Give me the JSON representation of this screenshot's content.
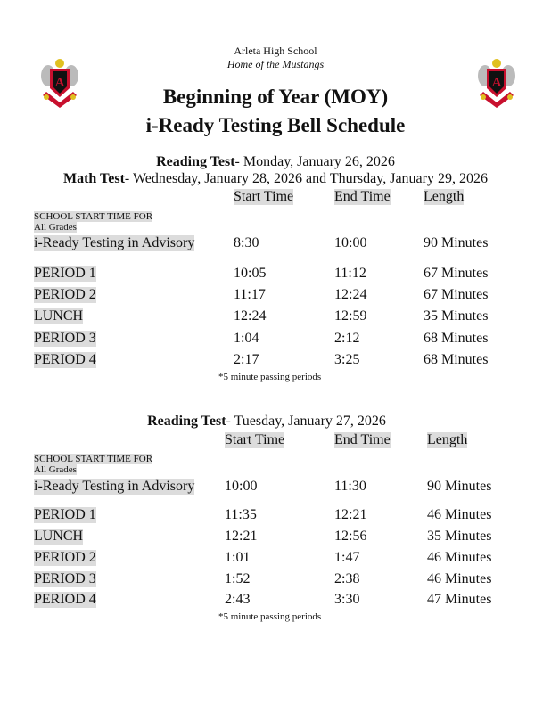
{
  "header": {
    "school": "Arleta High School",
    "motto": "Home of the Mustangs",
    "title_line1": "Beginning of Year (MOY)",
    "title_line2": "i-Ready Testing Bell Schedule",
    "crest_letter": "A"
  },
  "colors": {
    "highlight": "#dcdcdc",
    "crest_red": "#c8102e",
    "crest_black": "#111111",
    "crest_gold": "#e0c020"
  },
  "section1": {
    "line1_bold": "Reading Test",
    "line1_rest": "- Monday, January 26, 2026",
    "line2_bold": "Math Test",
    "line2_rest": "- Wednesday,  January 28, 2026 and Thursday,  January 29, 2026",
    "columns": [
      "Start Time",
      "End Time",
      "Length"
    ],
    "school_start_label": "SCHOOL START TIME FOR",
    "all_grades_label": "All Grades",
    "rows": [
      {
        "label": "i-Ready Testing in Advisory",
        "start": "8:30",
        "end": "10:00",
        "length": "90 Minutes"
      },
      {
        "label": "PERIOD 1",
        "start": "10:05",
        "end": "11:12",
        "length": "67 Minutes"
      },
      {
        "label": "PERIOD 2",
        "start": "11:17",
        "end": "12:24",
        "length": "67 Minutes"
      },
      {
        "label": "LUNCH",
        "start": "12:24",
        "end": "12:59",
        "length": "35 Minutes"
      },
      {
        "label": "PERIOD 3",
        "start": "1:04",
        "end": "2:12",
        "length": "68 Minutes"
      },
      {
        "label": "PERIOD 4",
        "start": "2:17",
        "end": "3:25",
        "length": "68 Minutes"
      }
    ],
    "note": "*5 minute passing periods"
  },
  "section2": {
    "line1_bold": "Reading Test",
    "line1_rest": "- Tuesday,  January 27, 2026",
    "columns": [
      "Start Time",
      "End Time",
      "Length"
    ],
    "school_start_label": "SCHOOL START TIME FOR",
    "all_grades_label": "All Grades",
    "rows": [
      {
        "label": "i-Ready Testing in Advisory",
        "start": "10:00",
        "end": "11:30",
        "length": "90 Minutes"
      },
      {
        "label": "PERIOD 1",
        "start": "11:35",
        "end": "12:21",
        "length": "46 Minutes"
      },
      {
        "label": "LUNCH",
        "start": "12:21",
        "end": "12:56",
        "length": "35 Minutes"
      },
      {
        "label": "PERIOD 2",
        "start": "1:01",
        "end": "1:47",
        "length": "46 Minutes"
      },
      {
        "label": "PERIOD 3",
        "start": "1:52",
        "end": "2:38",
        "length": "46 Minutes"
      },
      {
        "label": "PERIOD 4",
        "start": "2:43",
        "end": "3:30",
        "length": "47 Minutes"
      }
    ],
    "note": "*5 minute passing periods"
  }
}
